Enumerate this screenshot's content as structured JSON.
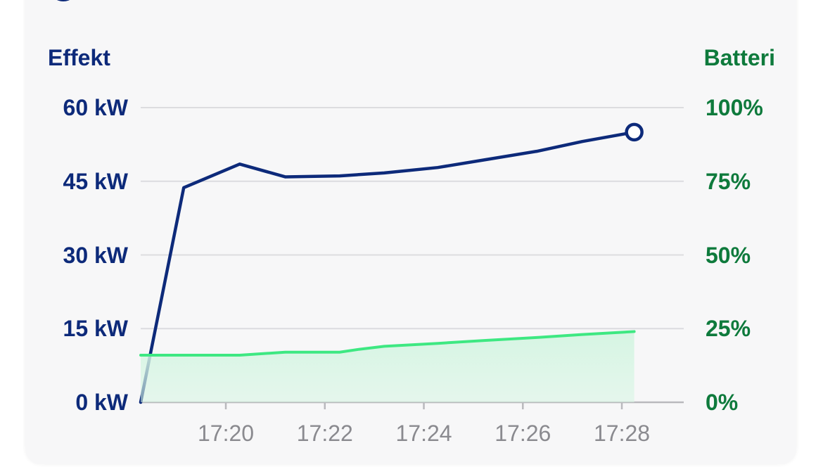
{
  "chart_data": {
    "type": "line",
    "left_axis": {
      "label": "Effekt",
      "ticks": [
        "0 kW",
        "15 kW",
        "30 kW",
        "45 kW",
        "60 kW"
      ],
      "ylim": [
        0,
        60
      ],
      "color": "#0d2a7a"
    },
    "right_axis": {
      "label": "Batteri",
      "ticks": [
        "0%",
        "25%",
        "50%",
        "75%",
        "100%"
      ],
      "ylim": [
        0,
        100
      ],
      "color": "#0e7a3c"
    },
    "x_ticks": [
      "17:20",
      "17:22",
      "17:24",
      "17:26",
      "17:28"
    ],
    "x_tick_minutes": [
      20,
      22,
      24,
      26,
      28
    ],
    "xlim": [
      18.28,
      29.25
    ],
    "grid": true,
    "series": [
      {
        "axis": "left",
        "color": "#0d2a7a",
        "end_marker": true,
        "x": [
          18.28,
          19.15,
          20.28,
          21.2,
          22.3,
          23.2,
          24.28,
          25.25,
          26.28,
          27.2,
          28.25
        ],
        "y": [
          0,
          43.7,
          48.5,
          45.9,
          46.1,
          46.7,
          47.8,
          49.4,
          51.1,
          53.1,
          55.0
        ]
      },
      {
        "axis": "right",
        "color": "#3ee882",
        "fill": "#d6f5e3",
        "x": [
          18.28,
          19.2,
          20.28,
          21.2,
          22.3,
          22.7,
          23.2,
          24.28,
          25.25,
          26.28,
          27.2,
          28.25
        ],
        "y": [
          16,
          16,
          16,
          17,
          17,
          18,
          19,
          20,
          21,
          22,
          23,
          24
        ]
      }
    ]
  }
}
